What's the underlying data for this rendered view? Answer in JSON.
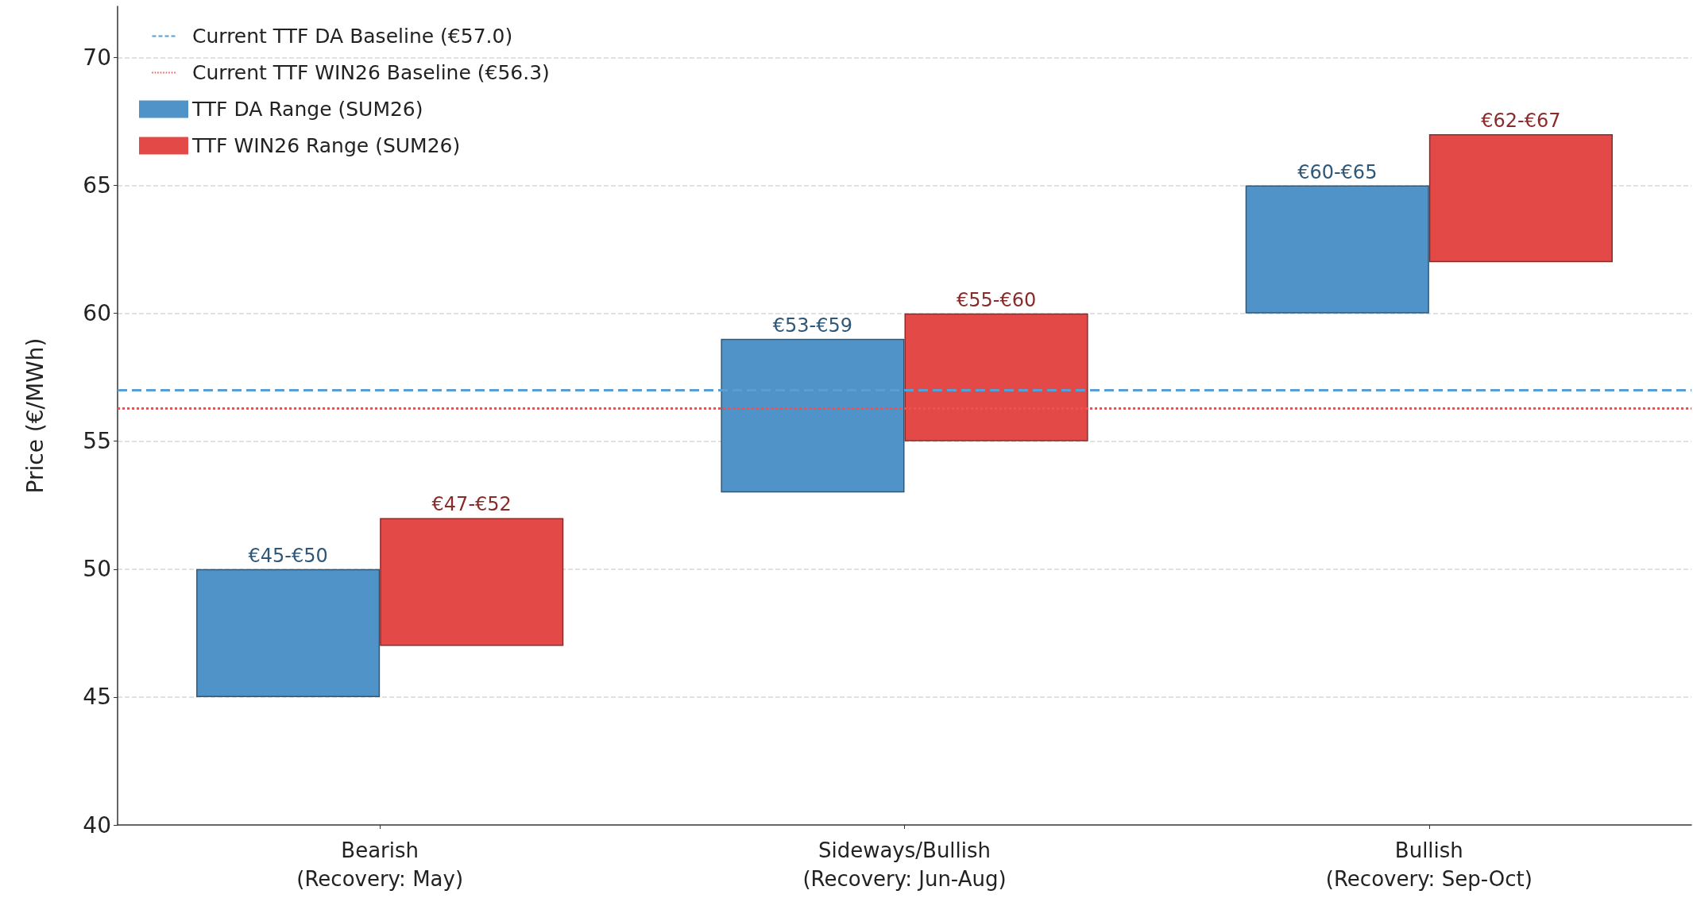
{
  "chart_data": {
    "type": "bar",
    "ylabel": "Price (€/MWh)",
    "categories": [
      "Bearish\n(Recovery: May)",
      "Sideways/Bullish\n(Recovery: Jun-Aug)",
      "Bullish\n(Recovery: Sep-Oct)"
    ],
    "series": [
      {
        "name": "TTF DA Range (SUM26)",
        "color": "#4f93c8",
        "base": [
          45,
          53,
          60
        ],
        "values": [
          5,
          6,
          5
        ],
        "value_labels": [
          "€45-€50",
          "€53-€59",
          "€60-€65"
        ]
      },
      {
        "name": "TTF WIN26 Range (SUM26)",
        "color": "#e34a47",
        "base": [
          47,
          55,
          62
        ],
        "values": [
          5,
          5,
          5
        ],
        "value_labels": [
          "€47-€52",
          "€55-€60",
          "€62-€67"
        ]
      }
    ],
    "ref_lines": [
      {
        "axis": "y",
        "value": 57.0,
        "label": "Current TTF DA Baseline (€57.0)",
        "color": "#5a9fd4",
        "line_style": "dashed"
      },
      {
        "axis": "y",
        "value": 56.3,
        "label": "Current TTF WIN26 Baseline (€56.3)",
        "color": "#f05050",
        "line_style": "dotted"
      }
    ],
    "ylim": [
      40,
      72
    ],
    "yticks": [
      40,
      45,
      50,
      55,
      60,
      65,
      70
    ],
    "grid": "y",
    "legend": "top left"
  }
}
